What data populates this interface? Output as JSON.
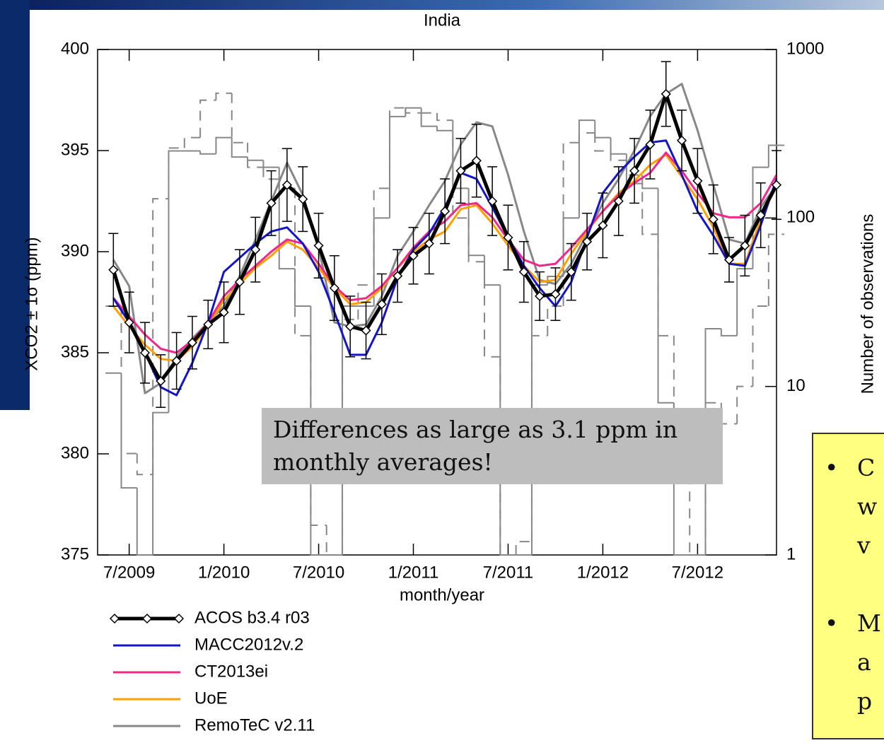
{
  "chart_data": {
    "type": "line",
    "title": "India",
    "xlabel": "month/year",
    "ylabel": "XCO2 ± 1σ (ppm)",
    "y2label": "Number of observations",
    "x": [
      "2009-06",
      "2009-07",
      "2009-08",
      "2009-09",
      "2009-10",
      "2009-11",
      "2009-12",
      "2010-01",
      "2010-02",
      "2010-03",
      "2010-04",
      "2010-05",
      "2010-06",
      "2010-07",
      "2010-08",
      "2010-09",
      "2010-10",
      "2010-11",
      "2010-12",
      "2011-01",
      "2011-02",
      "2011-03",
      "2011-04",
      "2011-05",
      "2011-06",
      "2011-07",
      "2011-08",
      "2011-09",
      "2011-10",
      "2011-11",
      "2011-12",
      "2012-01",
      "2012-02",
      "2012-03",
      "2012-04",
      "2012-05",
      "2012-06",
      "2012-07",
      "2012-08",
      "2012-09",
      "2012-10",
      "2012-11",
      "2012-12"
    ],
    "xlim": [
      "2009-05",
      "2012-12"
    ],
    "xticks": [
      {
        "value": "2009-07",
        "label": "7/2009"
      },
      {
        "value": "2010-01",
        "label": "1/2010"
      },
      {
        "value": "2010-07",
        "label": "7/2010"
      },
      {
        "value": "2011-01",
        "label": "1/2011"
      },
      {
        "value": "2011-07",
        "label": "7/2011"
      },
      {
        "value": "2012-01",
        "label": "1/2012"
      },
      {
        "value": "2012-07",
        "label": "7/2012"
      }
    ],
    "ylim": [
      375,
      400
    ],
    "yticks": [
      375,
      380,
      385,
      390,
      395,
      400
    ],
    "y2lim": [
      1,
      1000
    ],
    "y2ticks": [
      1,
      10,
      100,
      1000
    ],
    "y2log": true,
    "series": [
      {
        "name": "ACOS b3.4 r03",
        "color": "#000000",
        "marker": "diamond",
        "values": [
          389.1,
          386.5,
          385.0,
          383.6,
          384.6,
          385.5,
          386.4,
          387.0,
          388.5,
          390.1,
          392.4,
          393.3,
          392.6,
          390.3,
          388.2,
          386.3,
          386.1,
          387.4,
          388.8,
          389.8,
          390.4,
          392.0,
          394.0,
          394.5,
          392.5,
          390.7,
          389.0,
          387.8,
          387.9,
          389.0,
          390.5,
          391.3,
          392.5,
          394.0,
          395.3,
          397.8,
          395.5,
          393.5,
          391.6,
          389.6,
          390.3,
          391.8,
          393.3
        ],
        "errors": [
          1.8,
          1.5,
          1.5,
          1.3,
          1.4,
          1.3,
          1.2,
          1.5,
          1.6,
          1.6,
          1.6,
          1.8,
          1.6,
          1.6,
          1.6,
          1.5,
          1.4,
          1.5,
          1.3,
          1.4,
          1.5,
          1.6,
          1.6,
          1.8,
          1.7,
          1.6,
          1.5,
          1.2,
          1.3,
          1.4,
          1.4,
          1.6,
          1.7,
          1.6,
          1.7,
          1.6,
          1.5,
          1.6,
          1.7,
          1.1,
          1.5,
          1.6,
          1.7
        ]
      },
      {
        "name": "MACC2012v.2",
        "color": "#1414c8",
        "values": [
          387.7,
          386.5,
          385.0,
          383.3,
          382.9,
          384.5,
          386.5,
          389.0,
          389.7,
          390.4,
          391.0,
          391.2,
          390.4,
          389.0,
          387.0,
          384.9,
          384.9,
          386.5,
          388.7,
          390.1,
          390.9,
          392.2,
          393.9,
          393.6,
          392.2,
          390.7,
          389.3,
          388.2,
          387.3,
          388.5,
          390.7,
          392.9,
          393.9,
          394.7,
          395.4,
          395.5,
          393.8,
          392.0,
          390.8,
          389.4,
          389.3,
          391.3,
          393.6
        ]
      },
      {
        "name": "CT2013ei",
        "color": "#f0288c",
        "values": [
          387.7,
          386.8,
          385.9,
          385.2,
          385.0,
          385.6,
          386.5,
          387.8,
          388.6,
          389.3,
          390.0,
          390.6,
          390.4,
          389.4,
          388.3,
          387.6,
          387.7,
          388.3,
          389.2,
          390.2,
          391.0,
          391.5,
          392.3,
          392.4,
          391.7,
          390.6,
          389.6,
          389.3,
          389.4,
          390.2,
          391.1,
          392.0,
          392.8,
          393.4,
          393.9,
          394.9,
          394.0,
          392.9,
          391.9,
          391.7,
          391.7,
          392.4,
          393.8
        ]
      },
      {
        "name": "UoE",
        "color": "#ffa000",
        "values": [
          387.3,
          386.3,
          385.4,
          384.7,
          384.6,
          385.3,
          386.3,
          387.6,
          388.4,
          389.2,
          389.8,
          390.5,
          390.1,
          389.2,
          388.2,
          387.4,
          387.5,
          388.2,
          389.2,
          390.0,
          390.6,
          391.0,
          392.1,
          392.3,
          391.4,
          390.3,
          389.3,
          388.5,
          388.6,
          389.9,
          391.0,
          392.0,
          392.9,
          393.5,
          394.3,
          394.8,
          393.7,
          392.6,
          391.2,
          389.4,
          389.4,
          391.6,
          393.4
        ]
      },
      {
        "name": "RemoTeC v2.11",
        "color": "#888888",
        "values": [
          389.6,
          388.3,
          383.0,
          383.5,
          384.8,
          385.7,
          386.5,
          387.3,
          388.8,
          390.6,
          392.5,
          394.4,
          392.8,
          390.2,
          386.5,
          386.3,
          386.4,
          387.8,
          389.8,
          391.0,
          392.3,
          393.5,
          395.3,
          396.4,
          396.2,
          393.8,
          391.0,
          388.6,
          388.4,
          389.4,
          390.9,
          392.4,
          393.6,
          395.0,
          396.7,
          397.8,
          398.3,
          396.0,
          393.3,
          390.6,
          390.4,
          392.2,
          393.3
        ]
      },
      {
        "axis": "y2",
        "color": "#888888",
        "step": true,
        "values": [
          12,
          2.5,
          1,
          7,
          250,
          250,
          240,
          300,
          230,
          220,
          200,
          50,
          30,
          1,
          1,
          30,
          30,
          100,
          400,
          450,
          350,
          330,
          150,
          60,
          40,
          1,
          1,
          40,
          45,
          100,
          380,
          300,
          240,
          160,
          150,
          8,
          1,
          1,
          22,
          20,
          50,
          200,
          270
        ]
      },
      {
        "axis": "y2",
        "color": "#888888",
        "step": true,
        "dash": true,
        "values": [
          30,
          4,
          3,
          130,
          260,
          300,
          500,
          550,
          280,
          200,
          170,
          150,
          20,
          1.5,
          1,
          25,
          40,
          150,
          450,
          420,
          420,
          380,
          100,
          55,
          15,
          1,
          1.2,
          20,
          30,
          280,
          320,
          250,
          220,
          180,
          80,
          20,
          3,
          1,
          8,
          6,
          10,
          30,
          80
        ]
      }
    ],
    "annotation": "Differences as large as 3.1 ppm in monthly averages!"
  },
  "sidebar": {
    "bullets": [
      [
        "C",
        "w",
        "v"
      ],
      [
        "M",
        "a",
        "p"
      ]
    ]
  }
}
